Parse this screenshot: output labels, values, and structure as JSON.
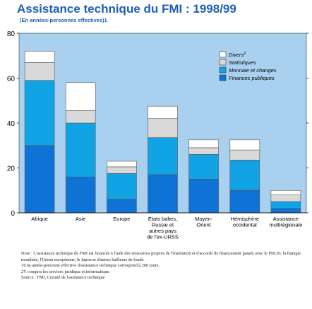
{
  "header": {
    "title": "Assistance technique du FMI : 1998/99",
    "subtitle": "(En années-personnes effectives)1"
  },
  "notes": {
    "note": "Note : L'assistance technique du FMI est financée à l'aide des ressources propres de l'institution et d'accords de financement passés avec le PNUD, la Banque mondiale, l'Union européenne, le Japon et d'autres bailleurs de fonds.",
    "footnote1": "1Une année-personne effective d'assistance technique correspond à 260 jours.",
    "footnote2": "2Y compris les services juridique et informatique.",
    "source": "Source : FMI, Comité de l'assistance technique"
  },
  "colors": {
    "background": "#a9d1ef",
    "finances": "#0f73d6",
    "monnaie": "#12a3e4",
    "statistiques": "#d9d9d9",
    "divers": "#ffffff"
  },
  "chart_data": {
    "type": "bar",
    "stacked": true,
    "title": "Assistance technique du FMI : 1998/99",
    "subtitle": "(En années-personnes effectives)1",
    "ylim": [
      0,
      80
    ],
    "yticks": [
      0,
      20,
      40,
      60,
      80
    ],
    "categories": [
      [
        "Afrique"
      ],
      [
        "Asie"
      ],
      [
        "Europe"
      ],
      [
        "États baltes,",
        "Russie et",
        "autres pays",
        "de l'ex-URSS"
      ],
      [
        "Moyen-",
        "Orient"
      ],
      [
        "Hémisphère",
        "occidental"
      ],
      [
        "Assistance",
        "multirégionale"
      ]
    ],
    "series": [
      {
        "name": "Finances publiques",
        "color": "#0f73d6",
        "values": [
          30,
          16,
          6,
          17,
          15,
          10,
          2
        ]
      },
      {
        "name": "Monnaie et changes",
        "color": "#12a3e4",
        "values": [
          29,
          24,
          11.5,
          16.5,
          11,
          13.5,
          3
        ]
      },
      {
        "name": "Statistiques",
        "color": "#d9d9d9",
        "values": [
          8,
          5.5,
          3,
          8.5,
          3,
          4.5,
          3
        ]
      },
      {
        "name": "Divers2",
        "color": "#ffffff",
        "values": [
          5,
          12.5,
          2.5,
          5.5,
          3.5,
          4.5,
          2
        ]
      }
    ],
    "legend_order": [
      "Divers2",
      "Statistiques",
      "Monnaie et changes",
      "Finances publiques"
    ],
    "legend_position": "top-right",
    "grid": false
  }
}
